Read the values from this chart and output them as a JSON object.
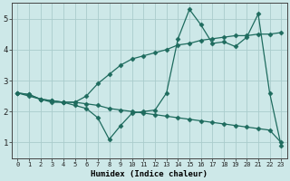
{
  "xlabel": "Humidex (Indice chaleur)",
  "bg_color": "#cde8e8",
  "grid_color": "#aacccc",
  "line_color": "#1e6b5e",
  "ylim": [
    0.5,
    5.5
  ],
  "xlim": [
    -0.5,
    23.5
  ],
  "yticks": [
    1,
    2,
    3,
    4,
    5
  ],
  "xticks": [
    0,
    1,
    2,
    3,
    4,
    5,
    6,
    7,
    8,
    9,
    10,
    11,
    12,
    13,
    14,
    15,
    16,
    17,
    18,
    19,
    20,
    21,
    22,
    23
  ],
  "line1_x": [
    0,
    1,
    2,
    3,
    4,
    5,
    6,
    7,
    8,
    9,
    10,
    11,
    12,
    13,
    14,
    15,
    16,
    17,
    18,
    19,
    20,
    21,
    22,
    23
  ],
  "line1_y": [
    2.6,
    2.5,
    2.4,
    2.3,
    2.3,
    2.2,
    2.1,
    1.8,
    1.1,
    1.55,
    1.95,
    2.0,
    2.05,
    2.6,
    4.35,
    5.3,
    4.8,
    4.2,
    4.25,
    4.1,
    4.4,
    5.15,
    2.6,
    0.9
  ],
  "line2_x": [
    0,
    1,
    2,
    3,
    4,
    5,
    6,
    7,
    8,
    9,
    10,
    11,
    12,
    13,
    14,
    15,
    16,
    17,
    18,
    19,
    20,
    21,
    22,
    23
  ],
  "line2_y": [
    2.6,
    2.55,
    2.4,
    2.35,
    2.3,
    2.3,
    2.5,
    2.9,
    3.2,
    3.5,
    3.7,
    3.8,
    3.9,
    4.0,
    4.15,
    4.2,
    4.3,
    4.35,
    4.4,
    4.45,
    4.45,
    4.5,
    4.5,
    4.55
  ],
  "line3_x": [
    0,
    1,
    2,
    3,
    4,
    5,
    6,
    7,
    8,
    9,
    10,
    11,
    12,
    13,
    14,
    15,
    16,
    17,
    18,
    19,
    20,
    21,
    22,
    23
  ],
  "line3_y": [
    2.6,
    2.55,
    2.4,
    2.35,
    2.3,
    2.3,
    2.25,
    2.2,
    2.1,
    2.05,
    2.0,
    1.95,
    1.9,
    1.85,
    1.8,
    1.75,
    1.7,
    1.65,
    1.6,
    1.55,
    1.5,
    1.45,
    1.4,
    1.0
  ]
}
